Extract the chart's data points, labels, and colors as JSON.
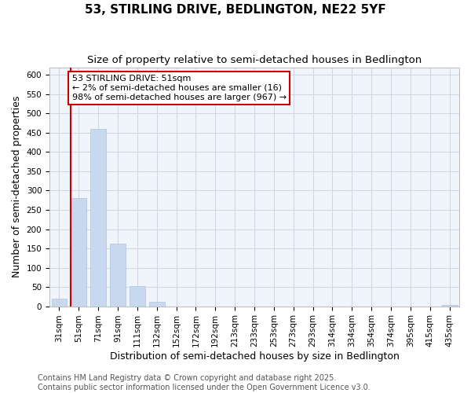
{
  "title": "53, STIRLING DRIVE, BEDLINGTON, NE22 5YF",
  "subtitle": "Size of property relative to semi-detached houses in Bedlington",
  "xlabel": "Distribution of semi-detached houses by size in Bedlington",
  "ylabel": "Number of semi-detached properties",
  "categories": [
    "31sqm",
    "51sqm",
    "71sqm",
    "91sqm",
    "111sqm",
    "132sqm",
    "152sqm",
    "172sqm",
    "192sqm",
    "213sqm",
    "233sqm",
    "253sqm",
    "273sqm",
    "293sqm",
    "314sqm",
    "334sqm",
    "354sqm",
    "374sqm",
    "395sqm",
    "415sqm",
    "435sqm"
  ],
  "values": [
    20,
    280,
    460,
    163,
    52,
    12,
    0,
    0,
    0,
    0,
    0,
    0,
    0,
    0,
    0,
    0,
    0,
    0,
    0,
    0,
    4
  ],
  "bar_color": "#c8d8ee",
  "bar_edge_color": "#b0c4de",
  "highlight_bar_index": 1,
  "highlight_color": "#cc0000",
  "annotation_title": "53 STIRLING DRIVE: 51sqm",
  "annotation_line1": "← 2% of semi-detached houses are smaller (16)",
  "annotation_line2": "98% of semi-detached houses are larger (967) →",
  "ylim": [
    0,
    620
  ],
  "yticks": [
    0,
    50,
    100,
    150,
    200,
    250,
    300,
    350,
    400,
    450,
    500,
    550,
    600
  ],
  "footer_line1": "Contains HM Land Registry data © Crown copyright and database right 2025.",
  "footer_line2": "Contains public sector information licensed under the Open Government Licence v3.0.",
  "bg_color": "#ffffff",
  "plot_bg_color": "#f0f4fb",
  "grid_color": "#d0d8e8",
  "title_fontsize": 11,
  "subtitle_fontsize": 9.5,
  "axis_label_fontsize": 9,
  "tick_fontsize": 7.5,
  "annotation_fontsize": 8,
  "footer_fontsize": 7
}
